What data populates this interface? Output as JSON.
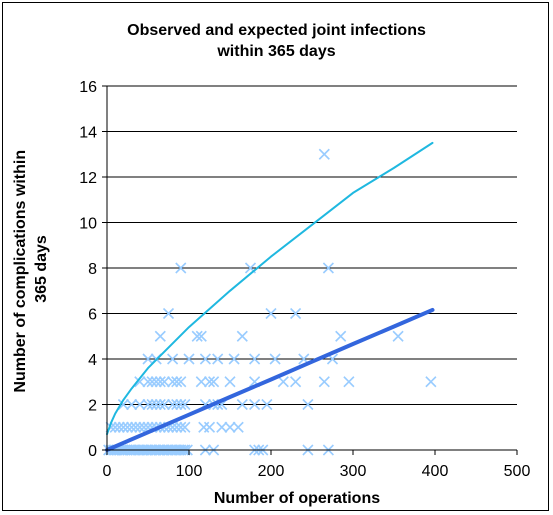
{
  "chart_data": {
    "type": "scatter",
    "title_lines": [
      "Observed and expected joint infections",
      "within 365 days"
    ],
    "xlabel": "Number of operations",
    "ylabel_lines": [
      "Number of complications within",
      "365 days"
    ],
    "xlim": [
      0,
      500
    ],
    "ylim": [
      0,
      16
    ],
    "x_ticks": [
      0,
      100,
      200,
      300,
      400,
      500
    ],
    "y_ticks": [
      0,
      2,
      4,
      6,
      8,
      10,
      12,
      14,
      16
    ],
    "grid": "horizontal",
    "legend": "none",
    "colors": {
      "observed": "#99ccff",
      "expected": "#3366dd",
      "upper_limit": "#1fb8e0"
    },
    "series": [
      {
        "kind": "observed",
        "marker": "x",
        "points": [
          [
            2,
            0
          ],
          [
            5,
            0
          ],
          [
            8,
            0
          ],
          [
            10,
            0
          ],
          [
            12,
            0
          ],
          [
            15,
            0
          ],
          [
            18,
            0
          ],
          [
            20,
            0
          ],
          [
            22,
            0
          ],
          [
            25,
            0
          ],
          [
            28,
            0
          ],
          [
            30,
            0
          ],
          [
            33,
            0
          ],
          [
            35,
            0
          ],
          [
            38,
            0
          ],
          [
            40,
            0
          ],
          [
            43,
            0
          ],
          [
            45,
            0
          ],
          [
            48,
            0
          ],
          [
            50,
            0
          ],
          [
            53,
            0
          ],
          [
            55,
            0
          ],
          [
            58,
            0
          ],
          [
            60,
            0
          ],
          [
            63,
            0
          ],
          [
            65,
            0
          ],
          [
            68,
            0
          ],
          [
            70,
            0
          ],
          [
            73,
            0
          ],
          [
            75,
            0
          ],
          [
            78,
            0
          ],
          [
            80,
            0
          ],
          [
            83,
            0
          ],
          [
            85,
            0
          ],
          [
            88,
            0
          ],
          [
            90,
            0
          ],
          [
            93,
            0
          ],
          [
            95,
            0
          ],
          [
            98,
            0
          ],
          [
            120,
            0
          ],
          [
            130,
            0
          ],
          [
            180,
            0
          ],
          [
            185,
            0
          ],
          [
            190,
            0
          ],
          [
            245,
            0
          ],
          [
            270,
            0
          ],
          [
            5,
            1
          ],
          [
            10,
            1
          ],
          [
            15,
            1
          ],
          [
            20,
            1
          ],
          [
            25,
            1
          ],
          [
            30,
            1
          ],
          [
            35,
            1
          ],
          [
            40,
            1
          ],
          [
            45,
            1
          ],
          [
            50,
            1
          ],
          [
            55,
            1
          ],
          [
            60,
            1
          ],
          [
            65,
            1
          ],
          [
            70,
            1
          ],
          [
            75,
            1
          ],
          [
            80,
            1
          ],
          [
            85,
            1
          ],
          [
            90,
            1
          ],
          [
            95,
            1
          ],
          [
            118,
            1
          ],
          [
            125,
            1
          ],
          [
            140,
            1
          ],
          [
            150,
            1
          ],
          [
            160,
            1
          ],
          [
            20,
            2
          ],
          [
            30,
            2
          ],
          [
            40,
            2
          ],
          [
            50,
            2
          ],
          [
            55,
            2
          ],
          [
            60,
            2
          ],
          [
            65,
            2
          ],
          [
            70,
            2
          ],
          [
            80,
            2
          ],
          [
            85,
            2
          ],
          [
            90,
            2
          ],
          [
            95,
            2
          ],
          [
            120,
            2
          ],
          [
            130,
            2
          ],
          [
            135,
            2
          ],
          [
            140,
            2
          ],
          [
            165,
            2
          ],
          [
            180,
            2
          ],
          [
            195,
            2
          ],
          [
            245,
            2
          ],
          [
            40,
            3
          ],
          [
            50,
            3
          ],
          [
            55,
            3
          ],
          [
            60,
            3
          ],
          [
            65,
            3
          ],
          [
            70,
            3
          ],
          [
            80,
            3
          ],
          [
            85,
            3
          ],
          [
            90,
            3
          ],
          [
            115,
            3
          ],
          [
            125,
            3
          ],
          [
            130,
            3
          ],
          [
            150,
            3
          ],
          [
            180,
            3
          ],
          [
            215,
            3
          ],
          [
            230,
            3
          ],
          [
            265,
            3
          ],
          [
            295,
            3
          ],
          [
            50,
            4
          ],
          [
            60,
            4
          ],
          [
            80,
            4
          ],
          [
            100,
            4
          ],
          [
            120,
            4
          ],
          [
            135,
            4
          ],
          [
            155,
            4
          ],
          [
            180,
            4
          ],
          [
            205,
            4
          ],
          [
            240,
            4
          ],
          [
            275,
            4
          ],
          [
            65,
            5
          ],
          [
            110,
            5
          ],
          [
            115,
            5
          ],
          [
            165,
            5
          ],
          [
            285,
            5
          ],
          [
            355,
            5
          ],
          [
            75,
            6
          ],
          [
            200,
            6
          ],
          [
            230,
            6
          ],
          [
            90,
            8
          ],
          [
            175,
            8
          ],
          [
            270,
            8
          ],
          [
            265,
            13
          ],
          [
            395,
            3
          ]
        ]
      },
      {
        "kind": "expected",
        "points": [
          [
            0,
            0
          ],
          [
            50,
            0.78
          ],
          [
            100,
            1.55
          ],
          [
            150,
            2.33
          ],
          [
            200,
            3.1
          ],
          [
            250,
            3.88
          ],
          [
            300,
            4.66
          ],
          [
            350,
            5.43
          ],
          [
            397,
            6.16
          ]
        ]
      },
      {
        "kind": "upper_limit",
        "points": [
          [
            0,
            0.7
          ],
          [
            5,
            1.2
          ],
          [
            10,
            1.6
          ],
          [
            20,
            2.2
          ],
          [
            30,
            2.7
          ],
          [
            50,
            3.6
          ],
          [
            75,
            4.5
          ],
          [
            100,
            5.4
          ],
          [
            150,
            7.0
          ],
          [
            200,
            8.5
          ],
          [
            250,
            9.9
          ],
          [
            300,
            11.3
          ],
          [
            350,
            12.4
          ],
          [
            397,
            13.5
          ]
        ]
      }
    ]
  }
}
